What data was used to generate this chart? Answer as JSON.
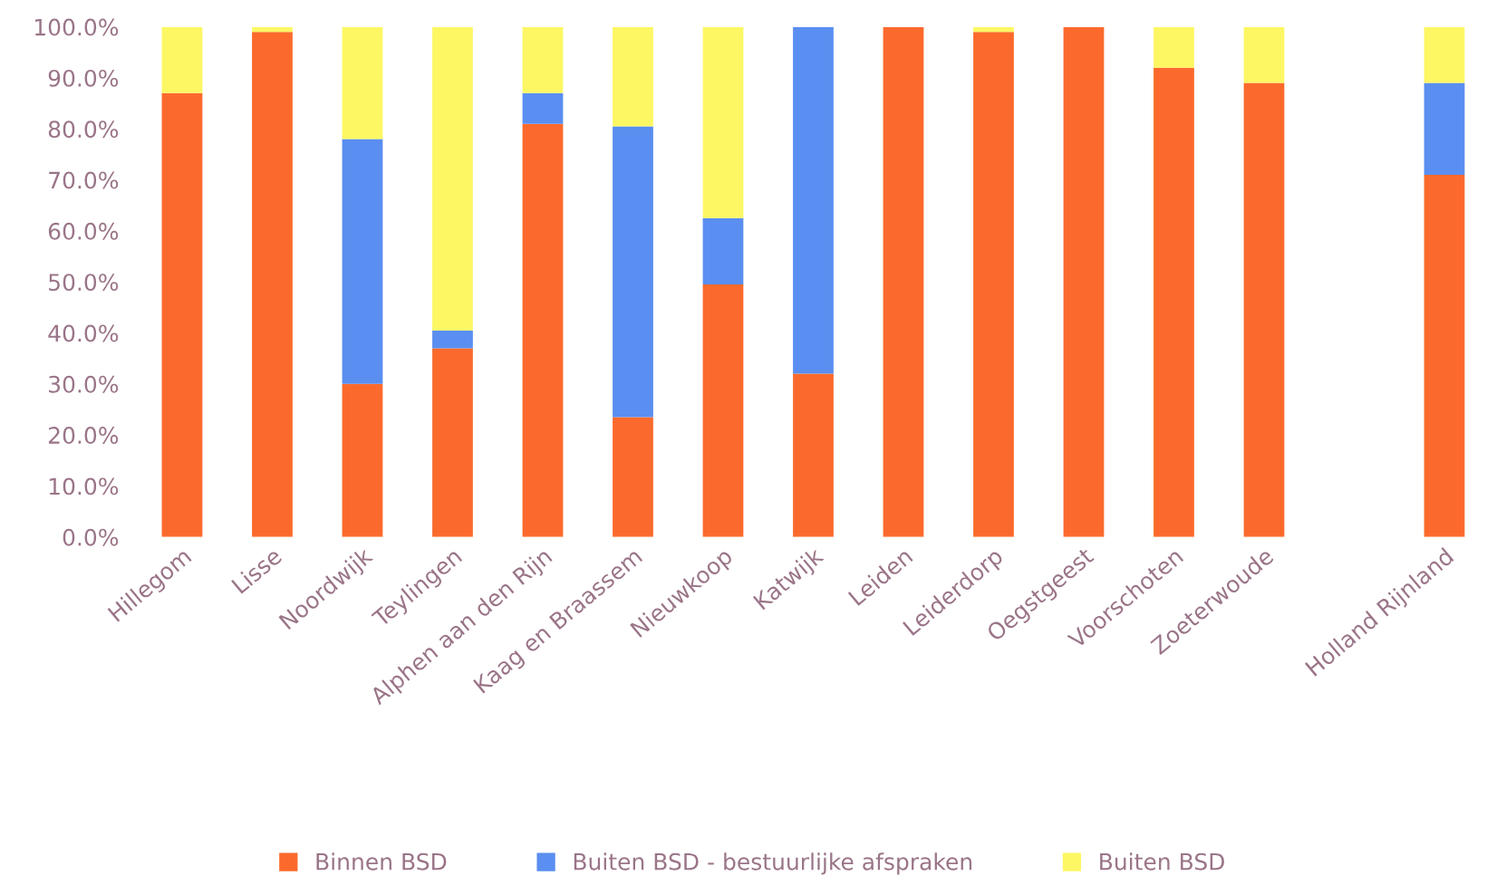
{
  "chart_data": {
    "type": "bar",
    "stacked": true,
    "categories": [
      "Hillegom",
      "Lisse",
      "Noordwijk",
      "Teylingen",
      "Alphen aan den Rijn",
      "Kaag en Braassem",
      "Nieuwkoop",
      "Katwijk",
      "Leiden",
      "Leiderdorp",
      "Oegstgeest",
      "Voorschoten",
      "Zoeterwoude",
      null,
      "Holland Rijnland"
    ],
    "series": [
      {
        "name": "Binnen BSD",
        "color": "#fb6a2c",
        "values": [
          87,
          99,
          30,
          37,
          81,
          23.5,
          49.5,
          32,
          100,
          99,
          100,
          92,
          89,
          null,
          71
        ]
      },
      {
        "name": "Buiten BSD - bestuurlijke afspraken",
        "color": "#5a8ef0",
        "values": [
          0,
          0,
          48,
          3.5,
          6,
          57,
          13,
          68,
          0,
          0,
          0,
          0,
          0,
          null,
          18
        ]
      },
      {
        "name": "Buiten BSD",
        "color": "#fdf764",
        "values": [
          13,
          1,
          22,
          59.5,
          13,
          19.5,
          37.5,
          0,
          0,
          1,
          0,
          8,
          11,
          null,
          11
        ]
      }
    ],
    "ylim": [
      0,
      100
    ],
    "yticks": [
      {
        "value": 0,
        "label": "0.0%"
      },
      {
        "value": 10,
        "label": "10.0%"
      },
      {
        "value": 20,
        "label": "20.0%"
      },
      {
        "value": 30,
        "label": "30.0%"
      },
      {
        "value": 40,
        "label": "40.0%"
      },
      {
        "value": 50,
        "label": "50.0%"
      },
      {
        "value": 60,
        "label": "60.0%"
      },
      {
        "value": 70,
        "label": "70.0%"
      },
      {
        "value": 80,
        "label": "80.0%"
      },
      {
        "value": 90,
        "label": "90.0%"
      },
      {
        "value": 100,
        "label": "100.0%"
      }
    ],
    "grid": false,
    "legend": "bottom"
  }
}
